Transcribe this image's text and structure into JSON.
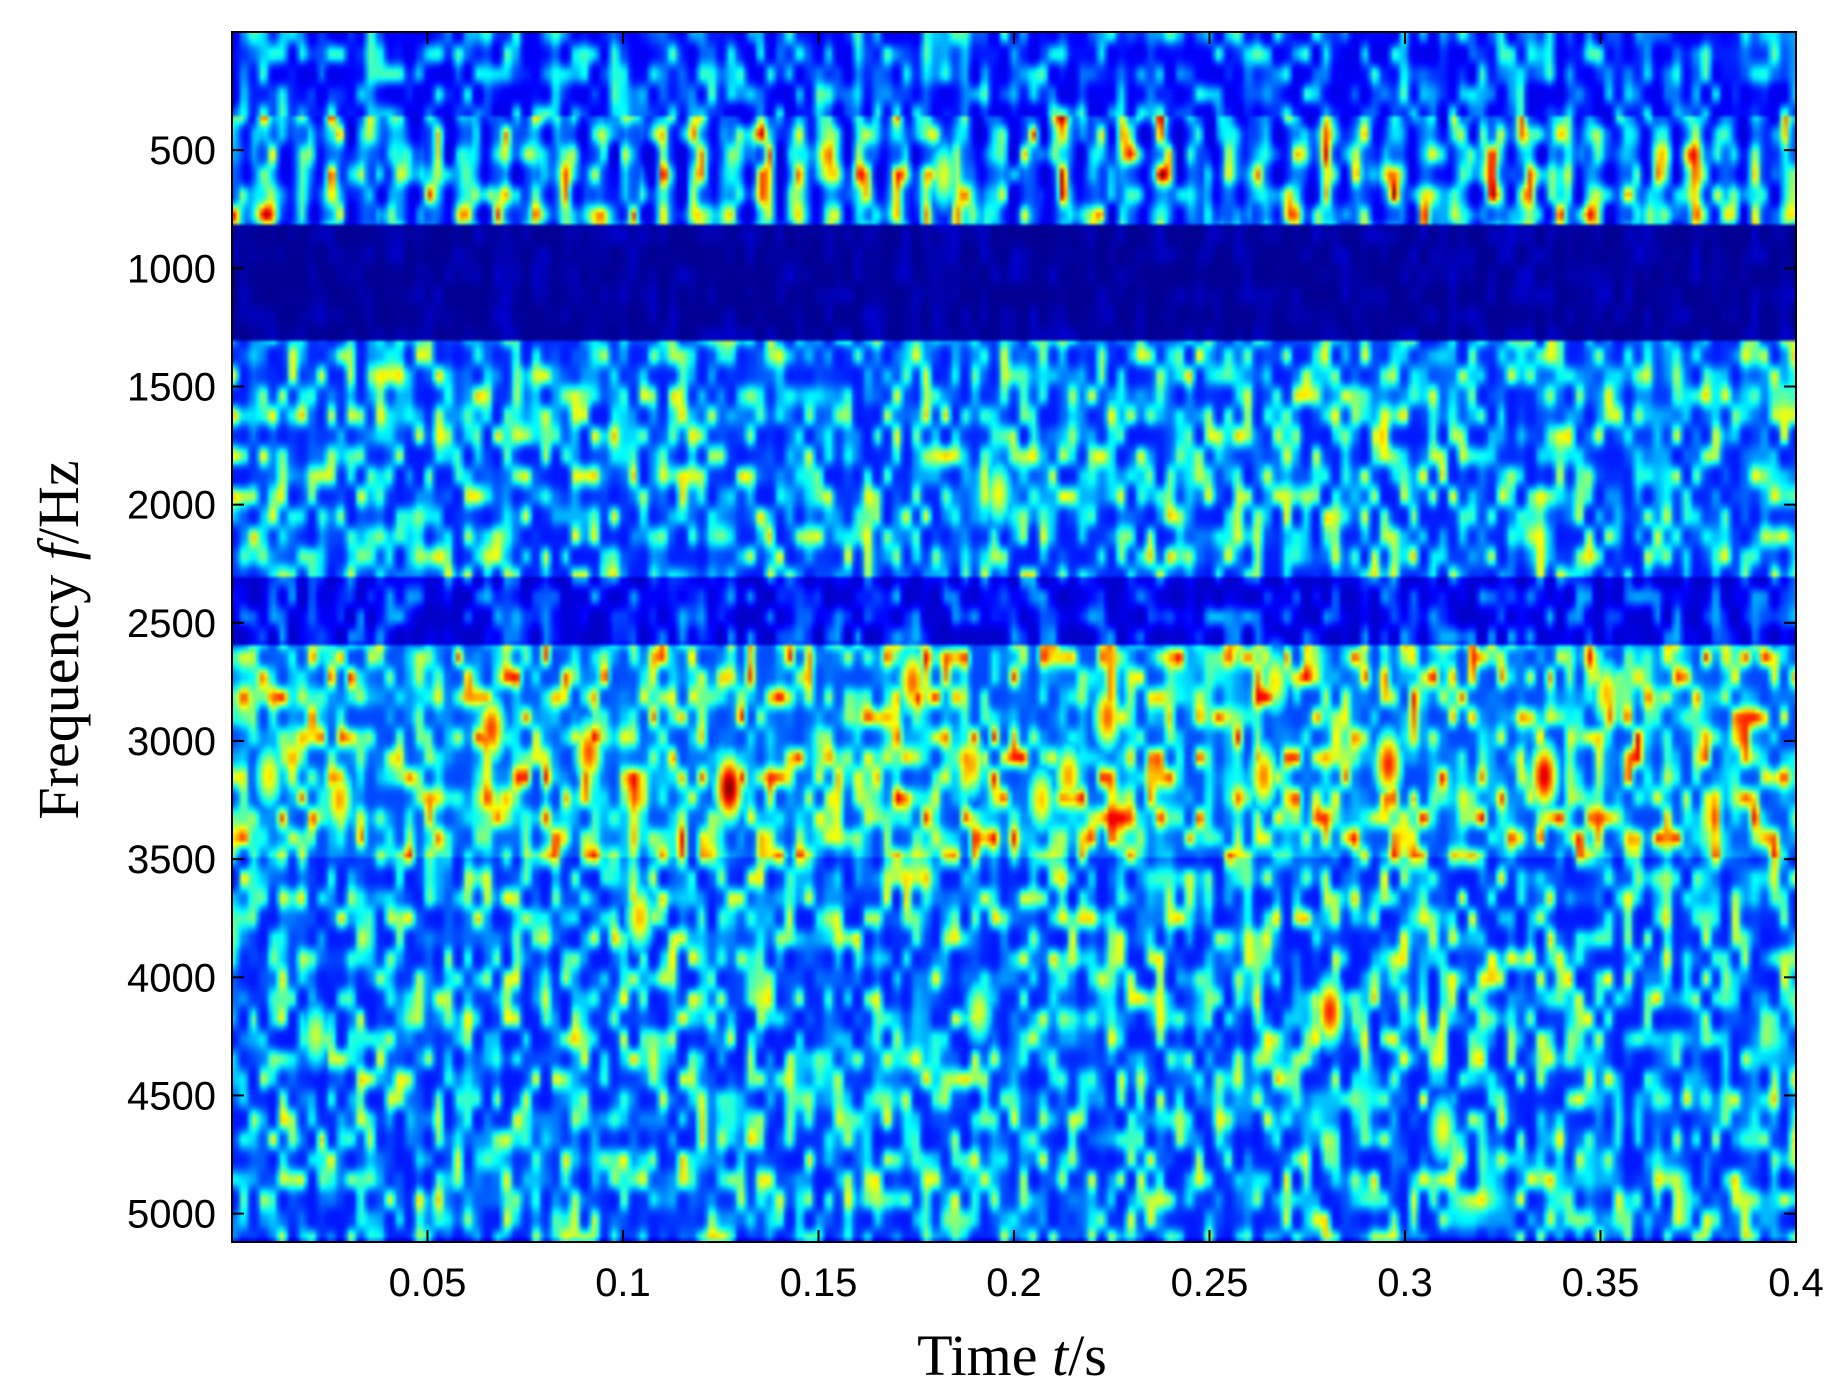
{
  "chart_data": {
    "type": "heatmap",
    "title": "",
    "xlabel": {
      "prefix": "Time ",
      "var": "t",
      "suffix": "/s"
    },
    "ylabel": {
      "prefix": "Frequency ",
      "var": "f",
      "suffix": "/Hz"
    },
    "xlim": [
      0,
      0.4
    ],
    "ylim": [
      5120,
      0
    ],
    "y_axis_direction": "increasing-downward",
    "xticks": [
      0.05,
      0.1,
      0.15,
      0.2,
      0.25,
      0.3,
      0.35,
      0.4
    ],
    "xtick_labels": [
      "0.05",
      "0.1",
      "0.15",
      "0.2",
      "0.25",
      "0.3",
      "0.35",
      "0.4"
    ],
    "yticks": [
      500,
      1000,
      1500,
      2000,
      2500,
      3000,
      3500,
      4000,
      4500,
      5000
    ],
    "ytick_labels": [
      "500",
      "1000",
      "1500",
      "2000",
      "2500",
      "3000",
      "3500",
      "4000",
      "4500",
      "5000"
    ],
    "colormap": "jet",
    "colormap_stops": [
      "#00008f",
      "#0000ff",
      "#00ffff",
      "#ffff00",
      "#ff0000",
      "#800000"
    ],
    "grid": false,
    "legend": "none",
    "bands": [
      {
        "freq_range": [
          350,
          800
        ],
        "level": "moderate",
        "note": "periodic bright blobs"
      },
      {
        "freq_range": [
          800,
          1300
        ],
        "level": "very low"
      },
      {
        "freq_range": [
          1300,
          2300
        ],
        "level": "moderate"
      },
      {
        "freq_range": [
          2300,
          2600
        ],
        "level": "low"
      },
      {
        "freq_range": [
          2600,
          3500
        ],
        "level": "high"
      },
      {
        "freq_range": [
          3500,
          5120
        ],
        "level": "moderate"
      }
    ],
    "hotspots": [
      {
        "t": 0.127,
        "f": 3200,
        "intensity": 1.0
      },
      {
        "t": 0.336,
        "f": 3150,
        "intensity": 0.92
      },
      {
        "t": 0.296,
        "f": 3100,
        "intensity": 0.85
      },
      {
        "t": 0.281,
        "f": 4150,
        "intensity": 0.85
      },
      {
        "t": 0.066,
        "f": 2950,
        "intensity": 0.82
      },
      {
        "t": 0.091,
        "f": 3050,
        "intensity": 0.8
      },
      {
        "t": 0.174,
        "f": 2750,
        "intensity": 0.78
      },
      {
        "t": 0.224,
        "f": 2900,
        "intensity": 0.78
      },
      {
        "t": 0.264,
        "f": 3150,
        "intensity": 0.75
      },
      {
        "t": 0.027,
        "f": 3250,
        "intensity": 0.72
      },
      {
        "t": 0.214,
        "f": 3150,
        "intensity": 0.72
      },
      {
        "t": 0.104,
        "f": 3750,
        "intensity": 0.7
      },
      {
        "t": 0.189,
        "f": 3100,
        "intensity": 0.72
      },
      {
        "t": 0.207,
        "f": 3250,
        "intensity": 0.68
      },
      {
        "t": 0.352,
        "f": 2800,
        "intensity": 0.7
      },
      {
        "t": 0.009,
        "f": 3150,
        "intensity": 0.65
      },
      {
        "t": 0.267,
        "f": 2750,
        "intensity": 0.65
      },
      {
        "t": 0.31,
        "f": 4650,
        "intensity": 0.62
      },
      {
        "t": 0.196,
        "f": 1950,
        "intensity": 0.62
      },
      {
        "t": 0.182,
        "f": 600,
        "intensity": 0.6
      },
      {
        "t": 0.021,
        "f": 4250,
        "intensity": 0.58
      },
      {
        "t": 0.191,
        "f": 4150,
        "intensity": 0.6
      }
    ]
  }
}
